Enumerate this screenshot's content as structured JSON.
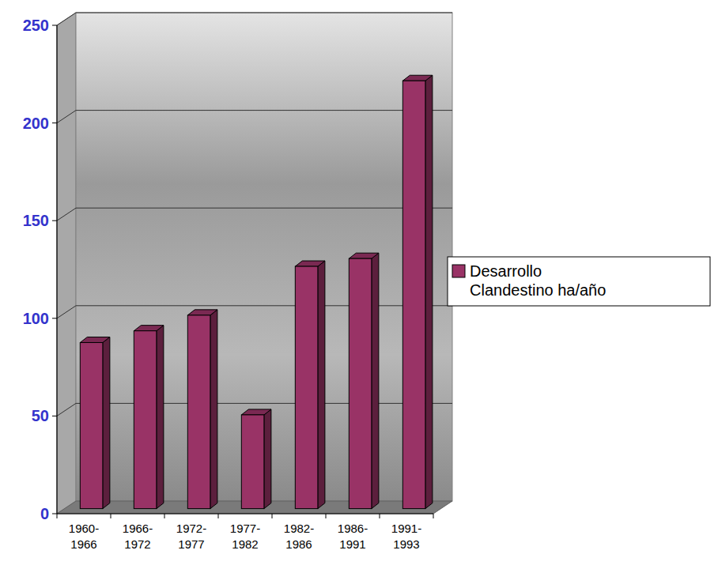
{
  "chart_data": {
    "type": "bar",
    "categories": [
      "1960-1966",
      "1966-1972",
      "1972-1977",
      "1977-1982",
      "1982-1986",
      "1986-1991",
      "1991-1993"
    ],
    "series": [
      {
        "name": "Desarrollo Clandestino ha/año",
        "color": "#993366",
        "values": [
          85,
          91,
          99,
          48,
          124,
          128,
          219
        ]
      }
    ],
    "ylim": [
      0,
      250
    ],
    "yticks": [
      0,
      50,
      100,
      150,
      200,
      250
    ],
    "grid": true,
    "legend": "right"
  }
}
